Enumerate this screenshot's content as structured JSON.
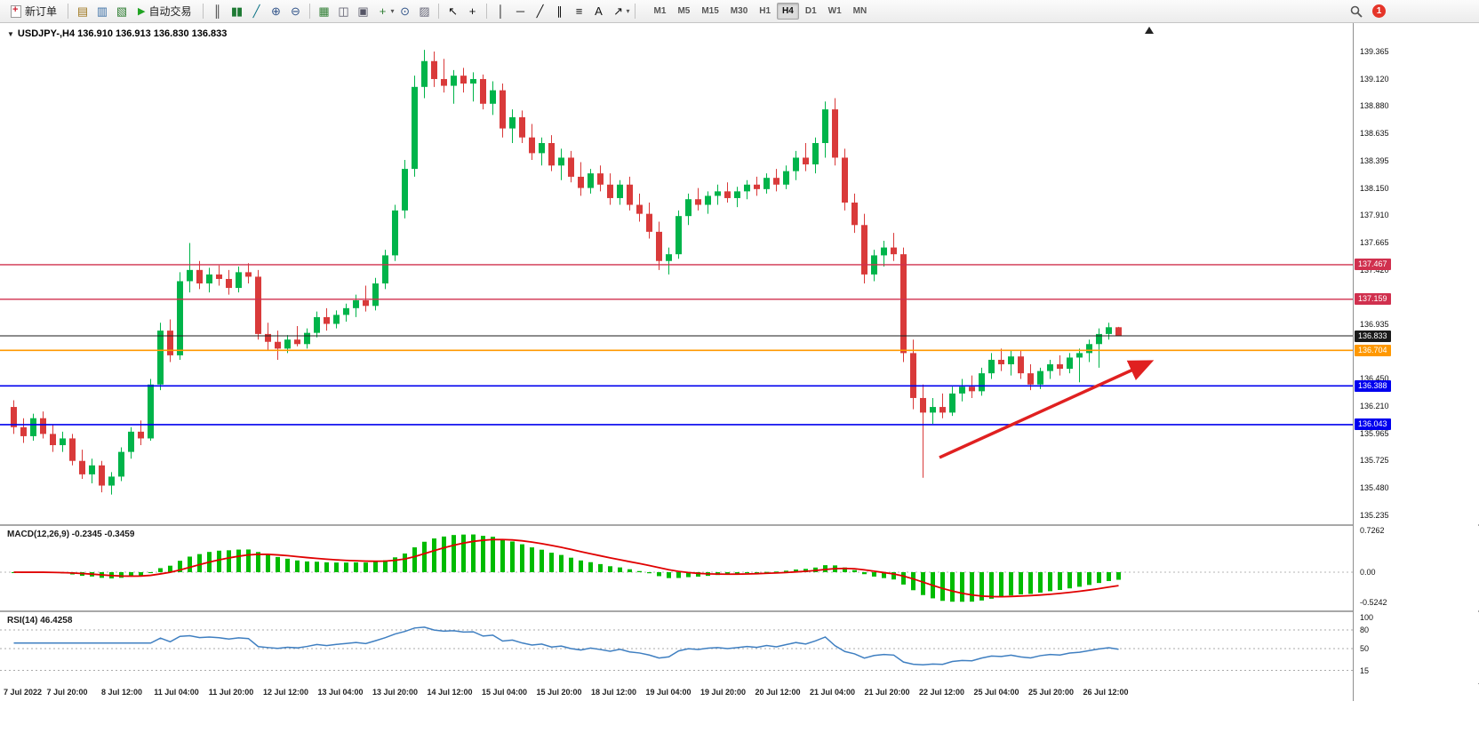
{
  "toolbar": {
    "new_order": {
      "label": "新订单"
    },
    "autotrading": {
      "label": "自动交易"
    },
    "groups": [
      {
        "items": [
          {
            "name": "new-chart-icon",
            "glyph": "▤",
            "color": "#a07820"
          },
          {
            "name": "profiles-icon",
            "glyph": "▥",
            "color": "#3a6ea5"
          },
          {
            "name": "market-watch-icon",
            "glyph": "▧",
            "color": "#2e7d32"
          }
        ]
      },
      {
        "items": [
          {
            "name": "bar-chart-icon",
            "glyph": "║",
            "color": "#333333"
          },
          {
            "name": "candlestick-chart-icon",
            "glyph": "▮▮",
            "color": "#1d7a33"
          },
          {
            "name": "line-chart-icon",
            "glyph": "╱",
            "color": "#0b7285"
          }
        ]
      },
      {
        "items": [
          {
            "name": "zoom-in-icon",
            "glyph": "⊕",
            "color": "#33558a"
          },
          {
            "name": "zoom-out-icon",
            "glyph": "⊖",
            "color": "#33558a"
          }
        ]
      },
      {
        "items": [
          {
            "name": "grid-icon",
            "glyph": "▦",
            "color": "#2e7d32"
          },
          {
            "name": "tile-windows-icon",
            "glyph": "◫",
            "color": "#555566"
          },
          {
            "name": "cascade-windows-icon",
            "glyph": "▣",
            "color": "#555566"
          },
          {
            "name": "new-window-icon",
            "glyph": "+",
            "color": "#2e7d32",
            "caret": true
          },
          {
            "name": "clock-icon",
            "glyph": "⊙",
            "color": "#33558a"
          },
          {
            "name": "chart-snapshot-icon",
            "glyph": "▨",
            "color": "#666677"
          }
        ]
      },
      {
        "items": [
          {
            "name": "cursor-icon",
            "glyph": "↖",
            "color": "#111111"
          },
          {
            "name": "crosshair-icon",
            "glyph": "+",
            "color": "#111111"
          }
        ]
      },
      {
        "items": [
          {
            "name": "vertical-line-icon",
            "glyph": "│",
            "color": "#111111"
          },
          {
            "name": "horizontal-line-icon",
            "glyph": "─",
            "color": "#111111"
          },
          {
            "name": "trendline-icon",
            "glyph": "╱",
            "color": "#111111"
          },
          {
            "name": "equidistant-channel-icon",
            "glyph": "∥",
            "color": "#111111"
          },
          {
            "name": "fibonacci-icon",
            "glyph": "≡",
            "color": "#111111"
          },
          {
            "name": "text-label-icon",
            "glyph": "A",
            "color": "#111111"
          },
          {
            "name": "arrows-icon",
            "glyph": "↗",
            "color": "#111111",
            "caret": true
          }
        ]
      }
    ],
    "timeframes": [
      "M1",
      "M5",
      "M15",
      "M30",
      "H1",
      "H4",
      "D1",
      "W1",
      "MN"
    ],
    "active_timeframe": "H4",
    "notification_badge": "1"
  },
  "chart": {
    "symbol_header": "USDJPY-,H4 136.910 136.913 136.830 136.833",
    "collapse_glyph": "▼",
    "macd_label": "MACD(12,26,9) -0.2345 -0.3459",
    "rsi_label": "RSI(14) 46.4258"
  },
  "chart_data": {
    "type": "candlestick",
    "symbol": "USDJPY-",
    "timeframe": "H4",
    "current_ohlc": {
      "open": 136.91,
      "high": 136.913,
      "low": 136.83,
      "close": 136.833
    },
    "up_color": "#00b44a",
    "down_color": "#d93a3a",
    "price_axis": {
      "ticks": [
        {
          "label": "139.365",
          "price": 139.365
        },
        {
          "label": "139.120",
          "price": 139.12
        },
        {
          "label": "138.880",
          "price": 138.88
        },
        {
          "label": "138.635",
          "price": 138.635
        },
        {
          "label": "138.395",
          "price": 138.395
        },
        {
          "label": "138.150",
          "price": 138.15
        },
        {
          "label": "137.910",
          "price": 137.91
        },
        {
          "label": "137.665",
          "price": 137.665
        },
        {
          "label": "137.420",
          "price": 137.42
        },
        {
          "label": "136.935",
          "price": 136.935
        },
        {
          "label": "136.450",
          "price": 136.45
        },
        {
          "label": "136.210",
          "price": 136.21
        },
        {
          "label": "135.965",
          "price": 135.965
        },
        {
          "label": "135.725",
          "price": 135.725
        },
        {
          "label": "135.480",
          "price": 135.48
        },
        {
          "label": "135.235",
          "price": 135.235
        }
      ]
    },
    "hlines": [
      {
        "label": "137.467",
        "price": 137.467,
        "color": "#d0304e",
        "width": 1.4
      },
      {
        "label": "137.159",
        "price": 137.159,
        "color": "#d0304e",
        "width": 1.4
      },
      {
        "label": "136.833",
        "price": 136.833,
        "color": "#1a1a1a",
        "width": 1
      },
      {
        "label": "136.704",
        "price": 136.704,
        "color": "#ff9800",
        "width": 1.6
      },
      {
        "label": "136.388",
        "price": 136.388,
        "color": "#0000ee",
        "width": 1.6
      },
      {
        "label": "136.043",
        "price": 136.043,
        "color": "#0000ee",
        "width": 1.6
      }
    ],
    "candles": [
      [
        136.2,
        136.26,
        135.96,
        136.02
      ],
      [
        136.02,
        136.1,
        135.88,
        135.94
      ],
      [
        135.94,
        136.14,
        135.9,
        136.1
      ],
      [
        136.1,
        136.16,
        135.92,
        135.96
      ],
      [
        135.96,
        136.04,
        135.8,
        135.86
      ],
      [
        135.86,
        135.98,
        135.8,
        135.92
      ],
      [
        135.92,
        135.96,
        135.68,
        135.72
      ],
      [
        135.72,
        135.82,
        135.56,
        135.6
      ],
      [
        135.6,
        135.74,
        135.52,
        135.68
      ],
      [
        135.68,
        135.72,
        135.44,
        135.5
      ],
      [
        135.5,
        135.62,
        135.42,
        135.58
      ],
      [
        135.58,
        135.84,
        135.54,
        135.8
      ],
      [
        135.8,
        136.02,
        135.74,
        135.98
      ],
      [
        135.98,
        136.08,
        135.86,
        135.92
      ],
      [
        135.92,
        136.45,
        135.9,
        136.4
      ],
      [
        136.4,
        136.95,
        136.35,
        136.88
      ],
      [
        136.88,
        136.98,
        136.6,
        136.66
      ],
      [
        136.66,
        137.4,
        136.62,
        137.32
      ],
      [
        137.32,
        137.66,
        137.22,
        137.42
      ],
      [
        137.42,
        137.5,
        137.25,
        137.3
      ],
      [
        137.3,
        137.44,
        137.22,
        137.38
      ],
      [
        137.38,
        137.46,
        137.28,
        137.34
      ],
      [
        137.34,
        137.42,
        137.2,
        137.26
      ],
      [
        137.26,
        137.45,
        137.22,
        137.4
      ],
      [
        137.4,
        137.48,
        137.3,
        137.36
      ],
      [
        137.36,
        137.42,
        136.8,
        136.85
      ],
      [
        136.85,
        136.95,
        136.7,
        136.78
      ],
      [
        136.78,
        136.88,
        136.62,
        136.72
      ],
      [
        136.72,
        136.84,
        136.68,
        136.8
      ],
      [
        136.8,
        136.92,
        136.74,
        136.76
      ],
      [
        136.76,
        136.9,
        136.72,
        136.86
      ],
      [
        136.86,
        137.05,
        136.82,
        137.0
      ],
      [
        137.0,
        137.08,
        136.88,
        136.94
      ],
      [
        136.94,
        137.06,
        136.9,
        137.02
      ],
      [
        137.02,
        137.12,
        136.96,
        137.08
      ],
      [
        137.08,
        137.2,
        137.0,
        137.15
      ],
      [
        137.15,
        137.28,
        137.05,
        137.1
      ],
      [
        137.1,
        137.35,
        137.06,
        137.3
      ],
      [
        137.3,
        137.6,
        137.25,
        137.55
      ],
      [
        137.55,
        138.0,
        137.5,
        137.95
      ],
      [
        137.95,
        138.4,
        137.88,
        138.32
      ],
      [
        138.32,
        139.15,
        138.25,
        139.05
      ],
      [
        139.05,
        139.38,
        138.95,
        139.28
      ],
      [
        139.28,
        139.365,
        139.05,
        139.12
      ],
      [
        139.12,
        139.3,
        139.0,
        139.06
      ],
      [
        139.06,
        139.2,
        138.9,
        139.15
      ],
      [
        139.15,
        139.22,
        139.0,
        139.08
      ],
      [
        139.08,
        139.18,
        138.92,
        139.12
      ],
      [
        139.12,
        139.16,
        138.85,
        138.9
      ],
      [
        138.9,
        139.1,
        138.8,
        139.02
      ],
      [
        139.02,
        139.08,
        138.6,
        138.68
      ],
      [
        138.68,
        138.85,
        138.55,
        138.78
      ],
      [
        138.78,
        138.84,
        138.55,
        138.6
      ],
      [
        138.6,
        138.72,
        138.4,
        138.46
      ],
      [
        138.46,
        138.6,
        138.35,
        138.55
      ],
      [
        138.55,
        138.62,
        138.3,
        138.35
      ],
      [
        138.35,
        138.5,
        138.22,
        138.42
      ],
      [
        138.42,
        138.48,
        138.2,
        138.25
      ],
      [
        138.25,
        138.38,
        138.08,
        138.15
      ],
      [
        138.15,
        138.32,
        138.1,
        138.28
      ],
      [
        138.28,
        138.35,
        138.12,
        138.18
      ],
      [
        138.18,
        138.28,
        138.0,
        138.06
      ],
      [
        138.06,
        138.22,
        138.0,
        138.18
      ],
      [
        138.18,
        138.25,
        137.95,
        138.0
      ],
      [
        138.0,
        138.1,
        137.85,
        137.92
      ],
      [
        137.92,
        138.02,
        137.7,
        137.76
      ],
      [
        137.76,
        137.85,
        137.42,
        137.5
      ],
      [
        137.5,
        137.62,
        137.38,
        137.56
      ],
      [
        137.56,
        137.95,
        137.52,
        137.9
      ],
      [
        137.9,
        138.1,
        137.82,
        138.05
      ],
      [
        138.05,
        138.15,
        137.95,
        138.0
      ],
      [
        138.0,
        138.12,
        137.92,
        138.08
      ],
      [
        138.08,
        138.18,
        138.0,
        138.12
      ],
      [
        138.12,
        138.2,
        138.02,
        138.06
      ],
      [
        138.06,
        138.16,
        137.98,
        138.12
      ],
      [
        138.12,
        138.22,
        138.05,
        138.18
      ],
      [
        138.18,
        138.25,
        138.08,
        138.14
      ],
      [
        138.14,
        138.28,
        138.1,
        138.24
      ],
      [
        138.24,
        138.32,
        138.12,
        138.18
      ],
      [
        138.18,
        138.35,
        138.14,
        138.3
      ],
      [
        138.3,
        138.48,
        138.22,
        138.42
      ],
      [
        138.42,
        138.55,
        138.3,
        138.36
      ],
      [
        138.36,
        138.6,
        138.28,
        138.55
      ],
      [
        138.55,
        138.92,
        138.42,
        138.85
      ],
      [
        138.85,
        138.95,
        138.35,
        138.42
      ],
      [
        138.42,
        138.5,
        137.95,
        138.02
      ],
      [
        138.02,
        138.1,
        137.75,
        137.82
      ],
      [
        137.82,
        137.92,
        137.3,
        137.38
      ],
      [
        137.38,
        137.6,
        137.32,
        137.55
      ],
      [
        137.55,
        137.68,
        137.45,
        137.62
      ],
      [
        137.62,
        137.75,
        137.5,
        137.56
      ],
      [
        137.56,
        137.62,
        136.6,
        136.68
      ],
      [
        136.68,
        136.8,
        136.18,
        136.28
      ],
      [
        136.28,
        136.4,
        135.57,
        136.15
      ],
      [
        136.15,
        136.28,
        136.05,
        136.2
      ],
      [
        136.2,
        136.32,
        136.1,
        136.15
      ],
      [
        136.15,
        136.38,
        136.12,
        136.32
      ],
      [
        136.32,
        136.45,
        136.25,
        136.38
      ],
      [
        136.38,
        136.48,
        136.28,
        136.34
      ],
      [
        136.34,
        136.55,
        136.3,
        136.5
      ],
      [
        136.5,
        136.68,
        136.45,
        136.62
      ],
      [
        136.62,
        136.72,
        136.52,
        136.58
      ],
      [
        136.58,
        136.7,
        136.48,
        136.65
      ],
      [
        136.65,
        136.7,
        136.45,
        136.5
      ],
      [
        136.5,
        136.58,
        136.35,
        136.4
      ],
      [
        136.4,
        136.55,
        136.36,
        136.52
      ],
      [
        136.52,
        136.62,
        136.45,
        136.58
      ],
      [
        136.58,
        136.66,
        136.48,
        136.54
      ],
      [
        136.54,
        136.68,
        136.5,
        136.64
      ],
      [
        136.64,
        136.72,
        136.42,
        136.68
      ],
      [
        136.68,
        136.8,
        136.6,
        136.76
      ],
      [
        136.76,
        136.9,
        136.55,
        136.85
      ],
      [
        136.85,
        136.95,
        136.8,
        136.91
      ],
      [
        136.91,
        136.913,
        136.83,
        136.833
      ]
    ],
    "x_labels": [
      "7 Jul 2022",
      "7 Jul 20:00",
      "8 Jul 12:00",
      "11 Jul 04:00",
      "11 Jul 20:00",
      "12 Jul 12:00",
      "13 Jul 04:00",
      "13 Jul 20:00",
      "14 Jul 12:00",
      "15 Jul 04:00",
      "15 Jul 20:00",
      "18 Jul 12:00",
      "19 Jul 04:00",
      "19 Jul 20:00",
      "20 Jul 12:00",
      "21 Jul 04:00",
      "21 Jul 20:00",
      "22 Jul 12:00",
      "25 Jul 04:00",
      "25 Jul 20:00",
      "26 Jul 12:00"
    ],
    "macd": {
      "params": "12,26,9",
      "value": -0.2345,
      "signal_value": -0.3459,
      "histogram_color": "#00bb00",
      "signal_color": "#e00000",
      "scale": [
        {
          "label": "0.7262",
          "v": 0.7262
        },
        {
          "label": "0.00",
          "v": 0
        },
        {
          "label": "-0.5242",
          "v": -0.5242
        }
      ]
    },
    "rsi": {
      "period": 14,
      "value": 46.4258,
      "line_color": "#3f7fc1",
      "levels": [
        {
          "label": "100",
          "v": 100,
          "dashed": false
        },
        {
          "label": "80",
          "v": 80,
          "dashed": true
        },
        {
          "label": "50",
          "v": 50,
          "dashed": true
        },
        {
          "label": "15",
          "v": 15,
          "dashed": true
        }
      ]
    },
    "trend_arrow": {
      "from_index": 95,
      "from_price": 135.75,
      "to_index": 116.5,
      "to_price": 136.6,
      "color": "#e02020"
    }
  }
}
